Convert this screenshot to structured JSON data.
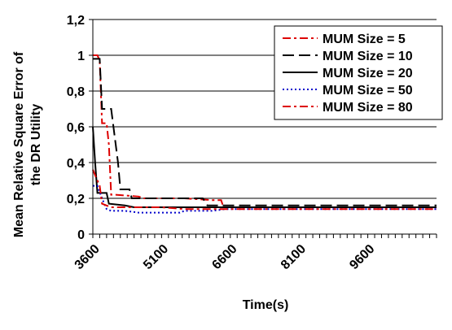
{
  "chart_data": {
    "type": "line",
    "title": "",
    "xlabel": "Time(s)",
    "ylabel_lines": [
      "Mean Relative Square Error of",
      "the DR Utility"
    ],
    "xlim": [
      3600,
      11100
    ],
    "ylim": [
      0,
      1.2
    ],
    "x_ticks": [
      3600,
      5100,
      6600,
      8100,
      9600
    ],
    "x_tick_labels": [
      "3600",
      "5100",
      "6600",
      "8100",
      "9600"
    ],
    "y_ticks": [
      0,
      0.2,
      0.4,
      0.6,
      0.8,
      1,
      1.2
    ],
    "y_tick_labels": [
      "0",
      "0,2",
      "0,4",
      "0,6",
      "0,8",
      "1",
      "1,2"
    ],
    "grid": "horizontal",
    "legend_position": "top-right",
    "series": [
      {
        "name": "MUM Size = 5",
        "color": "#dd0000",
        "style": "dashdot",
        "points": [
          [
            3600,
            1.0
          ],
          [
            3700,
            1.0
          ],
          [
            3750,
            0.97
          ],
          [
            3800,
            0.62
          ],
          [
            3900,
            0.62
          ],
          [
            3950,
            0.5
          ],
          [
            4000,
            0.22
          ],
          [
            4100,
            0.22
          ],
          [
            4600,
            0.21
          ],
          [
            4700,
            0.2
          ],
          [
            5600,
            0.2
          ],
          [
            6200,
            0.19
          ],
          [
            6400,
            0.19
          ],
          [
            6450,
            0.15
          ],
          [
            8500,
            0.15
          ],
          [
            11100,
            0.15
          ]
        ]
      },
      {
        "name": "MUM Size = 10",
        "color": "#000000",
        "style": "dash",
        "points": [
          [
            3600,
            0.98
          ],
          [
            3750,
            0.98
          ],
          [
            3800,
            0.7
          ],
          [
            4000,
            0.7
          ],
          [
            4050,
            0.6
          ],
          [
            4150,
            0.4
          ],
          [
            4200,
            0.25
          ],
          [
            4400,
            0.25
          ],
          [
            4450,
            0.2
          ],
          [
            5000,
            0.2
          ],
          [
            6000,
            0.2
          ],
          [
            6100,
            0.16
          ],
          [
            11100,
            0.16
          ]
        ]
      },
      {
        "name": "MUM Size = 20",
        "color": "#000000",
        "style": "solid",
        "points": [
          [
            3600,
            0.6
          ],
          [
            3650,
            0.4
          ],
          [
            3700,
            0.23
          ],
          [
            3900,
            0.23
          ],
          [
            3950,
            0.17
          ],
          [
            4300,
            0.16
          ],
          [
            4500,
            0.15
          ],
          [
            5200,
            0.15
          ],
          [
            6000,
            0.15
          ],
          [
            11100,
            0.15
          ]
        ]
      },
      {
        "name": "MUM Size = 50",
        "color": "#0000cc",
        "style": "dot",
        "points": [
          [
            3600,
            0.27
          ],
          [
            3700,
            0.27
          ],
          [
            3800,
            0.2
          ],
          [
            3900,
            0.14
          ],
          [
            4000,
            0.13
          ],
          [
            4300,
            0.13
          ],
          [
            4600,
            0.12
          ],
          [
            5500,
            0.12
          ],
          [
            5600,
            0.13
          ],
          [
            6200,
            0.13
          ],
          [
            6500,
            0.14
          ],
          [
            11100,
            0.14
          ]
        ]
      },
      {
        "name": "MUM Size = 80",
        "color": "#dd0000",
        "style": "dashdot",
        "points": [
          [
            3600,
            0.36
          ],
          [
            3700,
            0.3
          ],
          [
            3750,
            0.27
          ],
          [
            3800,
            0.17
          ],
          [
            4000,
            0.15
          ],
          [
            4500,
            0.15
          ],
          [
            5100,
            0.15
          ],
          [
            5600,
            0.14
          ],
          [
            6100,
            0.14
          ],
          [
            11100,
            0.14
          ]
        ]
      }
    ]
  }
}
